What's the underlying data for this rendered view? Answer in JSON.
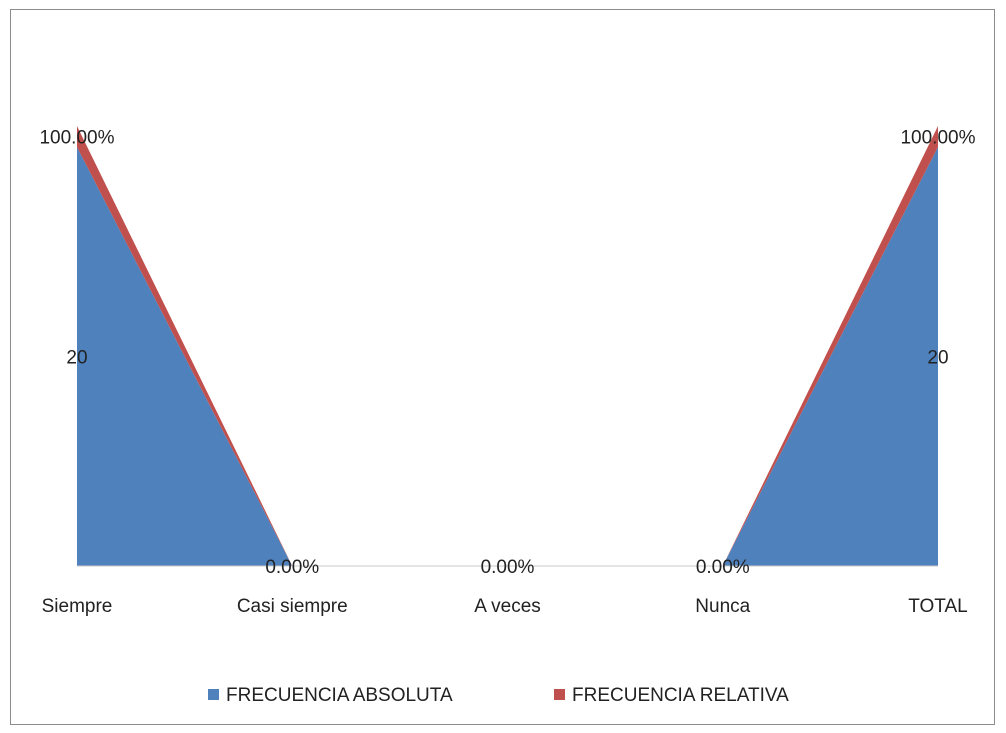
{
  "chart_data": {
    "type": "area",
    "stacked": true,
    "categories": [
      "Siempre",
      "Casi siempre",
      "A veces",
      "Nunca",
      "TOTAL"
    ],
    "series": [
      {
        "name": "FRECUENCIA ABSOLUTA",
        "values": [
          20,
          0,
          0,
          0,
          20
        ],
        "labels": [
          "20",
          "",
          "",
          "",
          "20"
        ],
        "color": "#4f81bd"
      },
      {
        "name": "FRECUENCIA RELATIVA",
        "values": [
          1,
          0,
          0,
          0,
          1
        ],
        "labels": [
          "100.00%",
          "0.00%",
          "0.00%",
          "0.00%",
          "100.00%"
        ],
        "color": "#c0504d"
      }
    ],
    "ylim": [
      0,
      21
    ],
    "grid": false,
    "legend": "bottom"
  }
}
